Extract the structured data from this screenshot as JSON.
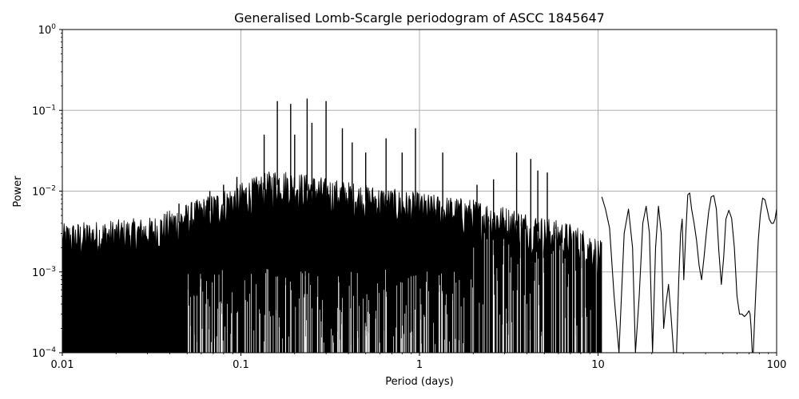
{
  "chart_data": {
    "type": "line",
    "title": "Generalised Lomb-Scargle periodogram of ASCC 1845647",
    "xlabel": "Period (days)",
    "ylabel": "Power",
    "xscale": "log",
    "yscale": "log",
    "xlim": [
      0.01,
      100
    ],
    "ylim": [
      0.0001,
      1
    ],
    "grid": true,
    "legend": "none",
    "line_color": "#000000",
    "x_ticks": [
      {
        "value": 0.01,
        "label": "0.01"
      },
      {
        "value": 0.1,
        "label": "0.1"
      },
      {
        "value": 1,
        "label": "1"
      },
      {
        "value": 10,
        "label": "10"
      },
      {
        "value": 100,
        "label": "100"
      }
    ],
    "y_ticks": [
      {
        "value": 0.0001,
        "base": "10",
        "exp": "−4"
      },
      {
        "value": 0.001,
        "base": "10",
        "exp": "−3"
      },
      {
        "value": 0.01,
        "base": "10",
        "exp": "−2"
      },
      {
        "value": 0.1,
        "base": "10",
        "exp": "−1"
      },
      {
        "value": 1,
        "base": "10",
        "exp": "0"
      }
    ],
    "series": [
      {
        "x": [
          10.5,
          11,
          11.6,
          12.3,
          13.1,
          14.0,
          14.8,
          15.6,
          16.2,
          17.0,
          17.8,
          18.6,
          19.4,
          20.2,
          21.0,
          21.8,
          22.6,
          23.3,
          24.0,
          24.8,
          25.6,
          26.5,
          27.5,
          28.3,
          29.0,
          29.6,
          30.2,
          31.0,
          31.8,
          32.6,
          33.4,
          34.5,
          35.6,
          36.8,
          38.0,
          39.2,
          40.4,
          41.6,
          43.0,
          44.5,
          46.0,
          47.5,
          49.0,
          50.5,
          52.0,
          54.0,
          56.0,
          58.0,
          60.0,
          62.0,
          64.0,
          66.0,
          68.0,
          70.0,
          71.0,
          72.0,
          73.0,
          74.0,
          75.5,
          77.0,
          79.0,
          81.0,
          83.5,
          86.0,
          88.5,
          91.0,
          93.5,
          96.0,
          98.0,
          100.0
        ],
        "y": [
          0.0085,
          0.006,
          0.0035,
          0.0005,
          0.0001,
          0.003,
          0.006,
          0.002,
          0.0001,
          0.0005,
          0.004,
          0.0065,
          0.003,
          0.0001,
          0.002,
          0.0065,
          0.003,
          0.0002,
          0.0004,
          0.0007,
          0.0003,
          0.0001,
          0.0001,
          0.0008,
          0.003,
          0.0045,
          0.0008,
          0.003,
          0.009,
          0.0095,
          0.006,
          0.004,
          0.0025,
          0.0012,
          0.0008,
          0.0015,
          0.003,
          0.0055,
          0.0085,
          0.0088,
          0.006,
          0.0018,
          0.0007,
          0.0015,
          0.0045,
          0.0058,
          0.0046,
          0.002,
          0.0005,
          0.0003,
          0.0003,
          0.00028,
          0.0003,
          0.00033,
          0.0003,
          0.0002,
          0.0001,
          0.0001,
          0.0003,
          0.0008,
          0.0025,
          0.005,
          0.0082,
          0.0078,
          0.006,
          0.0045,
          0.004,
          0.004,
          0.0045,
          0.006
        ]
      }
    ]
  }
}
